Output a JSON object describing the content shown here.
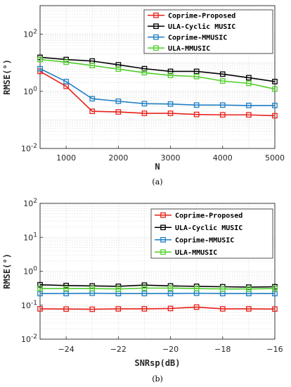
{
  "chart_data": [
    {
      "type": "line",
      "caption": "(a)",
      "xlabel": "N",
      "ylabel": "RMSE(°)",
      "y_scale": "log",
      "xlim": [
        500,
        5000
      ],
      "ylim": [
        0.01,
        1000
      ],
      "x": [
        500,
        1000,
        1500,
        2000,
        2500,
        3000,
        3500,
        4000,
        4500,
        5000
      ],
      "x_ticks": [
        "1000",
        "2000",
        "3000",
        "4000",
        "5000"
      ],
      "y_ticks": [
        "10^-2",
        "10^0",
        "10^2"
      ],
      "grid": true,
      "legend_position": "top-right",
      "series": [
        {
          "name": "Coprime-Proposed",
          "color": "#e8201a",
          "values": [
            5.0,
            1.5,
            0.2,
            0.19,
            0.17,
            0.17,
            0.155,
            0.15,
            0.15,
            0.14
          ]
        },
        {
          "name": "ULA-Cyclic MUSIC",
          "color": "#000000",
          "values": [
            15.5,
            13.0,
            11.5,
            8.5,
            6.2,
            5.0,
            5.0,
            4.0,
            3.0,
            2.2
          ]
        },
        {
          "name": "Coprime-MMUSIC",
          "color": "#1f7fc4",
          "values": [
            6.2,
            2.2,
            0.55,
            0.45,
            0.37,
            0.36,
            0.33,
            0.33,
            0.32,
            0.32
          ]
        },
        {
          "name": "ULA-MMUSIC",
          "color": "#4fcf2a",
          "values": [
            13.0,
            10.5,
            8.0,
            6.0,
            4.5,
            3.6,
            3.3,
            2.3,
            1.9,
            1.2
          ]
        }
      ]
    },
    {
      "type": "line",
      "caption": "(b)",
      "xlabel": "SNRsp(dB)",
      "ylabel": "RMSE(°)",
      "y_scale": "log",
      "xlim": [
        -25,
        -16
      ],
      "ylim": [
        0.01,
        100
      ],
      "x": [
        -25,
        -24,
        -23,
        -22,
        -21,
        -20,
        -19,
        -18,
        -17,
        -16
      ],
      "x_ticks": [
        "−24",
        "−22",
        "−20",
        "−18",
        "−16"
      ],
      "y_ticks": [
        "10^-2",
        "10^-1",
        "10^0",
        "10^1",
        "10^2"
      ],
      "grid": true,
      "legend_position": "top-right",
      "series": [
        {
          "name": "Coprime-Proposed",
          "color": "#e8201a",
          "values": [
            0.078,
            0.077,
            0.076,
            0.078,
            0.078,
            0.08,
            0.088,
            0.078,
            0.078,
            0.077
          ]
        },
        {
          "name": "ULA-Cyclic MUSIC",
          "color": "#000000",
          "values": [
            0.4,
            0.38,
            0.37,
            0.36,
            0.39,
            0.37,
            0.36,
            0.35,
            0.34,
            0.35
          ]
        },
        {
          "name": "Coprime-MMUSIC",
          "color": "#1f7fc4",
          "values": [
            0.22,
            0.22,
            0.225,
            0.22,
            0.22,
            0.22,
            0.225,
            0.22,
            0.22,
            0.22
          ]
        },
        {
          "name": "ULA-MMUSIC",
          "color": "#4fcf2a",
          "values": [
            0.31,
            0.31,
            0.31,
            0.3,
            0.32,
            0.32,
            0.31,
            0.3,
            0.3,
            0.31
          ]
        }
      ]
    }
  ]
}
